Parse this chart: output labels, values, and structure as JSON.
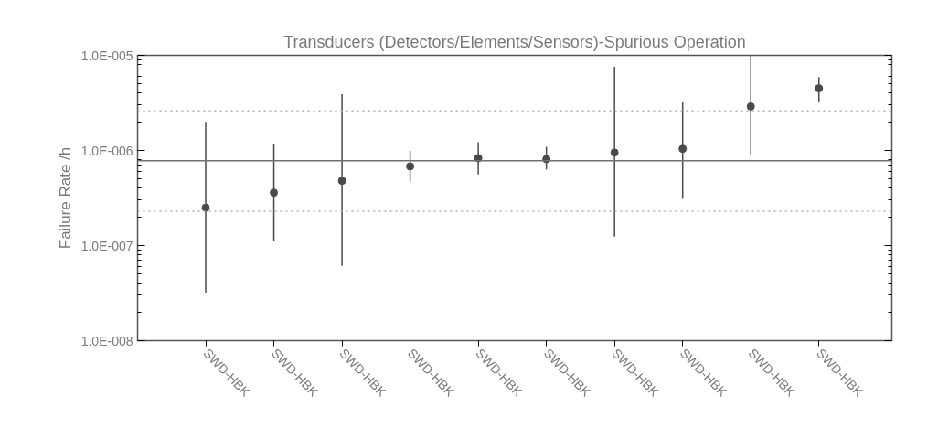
{
  "chart_data": {
    "type": "scatter",
    "title": "Transducers (Detectors/Elements/Sensors)-Spurious Operation",
    "ylabel": "Failure Rate /h",
    "categories": [
      "SWD-HBK",
      "SWD-HBK",
      "SWD-HBK",
      "SWD-HBK",
      "SWD-HBK",
      "SWD-HBK",
      "SWD-HBK",
      "SWD-HBK",
      "SWD-HBK",
      "SWD-HBK"
    ],
    "values": [
      2.5e-07,
      3.6e-07,
      4.8e-07,
      6.8e-07,
      8.3e-07,
      8.1e-07,
      9.5e-07,
      1.04e-06,
      2.9e-06,
      4.5e-06
    ],
    "errors": [
      [
        3.2e-08,
        2e-06
      ],
      [
        1.13e-07,
        1.16e-06
      ],
      [
        6.1e-08,
        3.9e-06
      ],
      [
        4.7e-07,
        9.9e-07
      ],
      [
        5.6e-07,
        1.22e-06
      ],
      [
        6.3e-07,
        1.09e-06
      ],
      [
        1.24e-07,
        7.6e-06
      ],
      [
        3.1e-07,
        3.2e-06
      ],
      [
        8.9e-07,
        1e-05
      ],
      [
        3.2e-06,
        5.9e-06
      ]
    ],
    "color": "#4a4a4a",
    "marker": "circle",
    "log": true,
    "grid": false,
    "ylim": [
      1e-08,
      1e-05
    ],
    "yticks": [
      {
        "value": 1e-08,
        "label": "1.0E-008"
      },
      {
        "value": 1e-07,
        "label": "1.0E-007"
      },
      {
        "value": 1e-06,
        "label": "1.0E-006"
      },
      {
        "value": 1e-05,
        "label": "1.0E-005"
      }
    ],
    "ref_lines": [
      {
        "axis": "y",
        "value": 2.6e-06,
        "line_style": "dotted",
        "color": "#b0b0b0"
      },
      {
        "axis": "y",
        "value": 7.8e-07,
        "line_style": "solid",
        "color": "#707070"
      },
      {
        "axis": "y",
        "value": 2.3e-07,
        "line_style": "dotted",
        "color": "#b0b0b0"
      }
    ]
  }
}
